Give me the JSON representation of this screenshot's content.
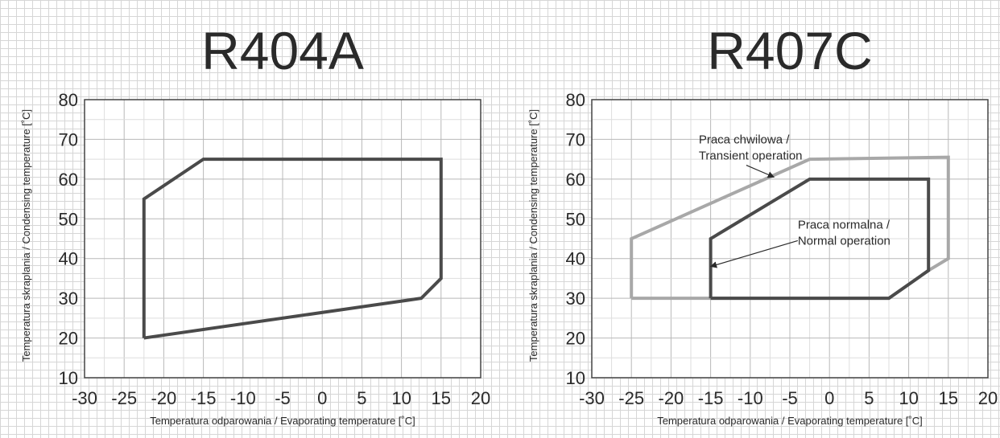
{
  "chart_data": [
    {
      "type": "line",
      "title": "R404A",
      "xlabel": "Temperatura odparowania / Evaporating temperature [˚C]",
      "ylabel": "Temperatura skraplania / Condensing temperature [˚C]",
      "xlim": [
        -30,
        20
      ],
      "ylim": [
        10,
        80
      ],
      "x_ticks": [
        -30,
        -25,
        -20,
        -15,
        -10,
        -5,
        0,
        5,
        10,
        15,
        20
      ],
      "y_ticks": [
        10,
        20,
        30,
        40,
        50,
        60,
        70,
        80
      ],
      "grid": true,
      "series": [
        {
          "color": "#4a4a4a",
          "closed": true,
          "points": [
            [
              -22.5,
              20
            ],
            [
              -22.5,
              55
            ],
            [
              -15,
              65
            ],
            [
              15,
              65
            ],
            [
              15,
              35
            ],
            [
              12.5,
              30
            ],
            [
              -22.5,
              20
            ]
          ]
        }
      ],
      "annotations": []
    },
    {
      "type": "line",
      "title": "R407C",
      "xlabel": "Temperatura odparowania / Evaporating temperature [˚C]",
      "ylabel": "Temperatura skraplania / Condensing temperature [˚C]",
      "xlim": [
        -30,
        20
      ],
      "ylim": [
        10,
        80
      ],
      "x_ticks": [
        -30,
        -25,
        -20,
        -15,
        -10,
        -5,
        0,
        5,
        10,
        15,
        20
      ],
      "y_ticks": [
        10,
        20,
        30,
        40,
        50,
        60,
        70,
        80
      ],
      "grid": true,
      "series": [
        {
          "color": "#a8a8a8",
          "closed": true,
          "points": [
            [
              -25,
              30
            ],
            [
              -25,
              45
            ],
            [
              -2.5,
              65
            ],
            [
              15,
              65.5
            ],
            [
              15,
              40
            ],
            [
              12.5,
              37
            ],
            [
              7.5,
              30
            ],
            [
              -25,
              30
            ]
          ]
        },
        {
          "color": "#4a4a4a",
          "closed": true,
          "points": [
            [
              -15,
              30
            ],
            [
              -15,
              45
            ],
            [
              -2.5,
              60
            ],
            [
              12.5,
              60
            ],
            [
              12.5,
              37
            ],
            [
              7.5,
              30
            ],
            [
              -15,
              30
            ]
          ]
        }
      ],
      "annotations": [
        {
          "lines": [
            "Praca chwilowa /",
            "Transient operation"
          ],
          "text_at": [
            -16.5,
            69
          ],
          "arrow_from": [
            -10.5,
            63.5
          ],
          "arrow_to": [
            -7,
            60.5
          ]
        },
        {
          "lines": [
            "Praca normalna /",
            "Normal operation"
          ],
          "text_at": [
            -4,
            47.5
          ],
          "arrow_from": [
            -4,
            44.5
          ],
          "arrow_to": [
            -15,
            38
          ]
        }
      ]
    }
  ]
}
